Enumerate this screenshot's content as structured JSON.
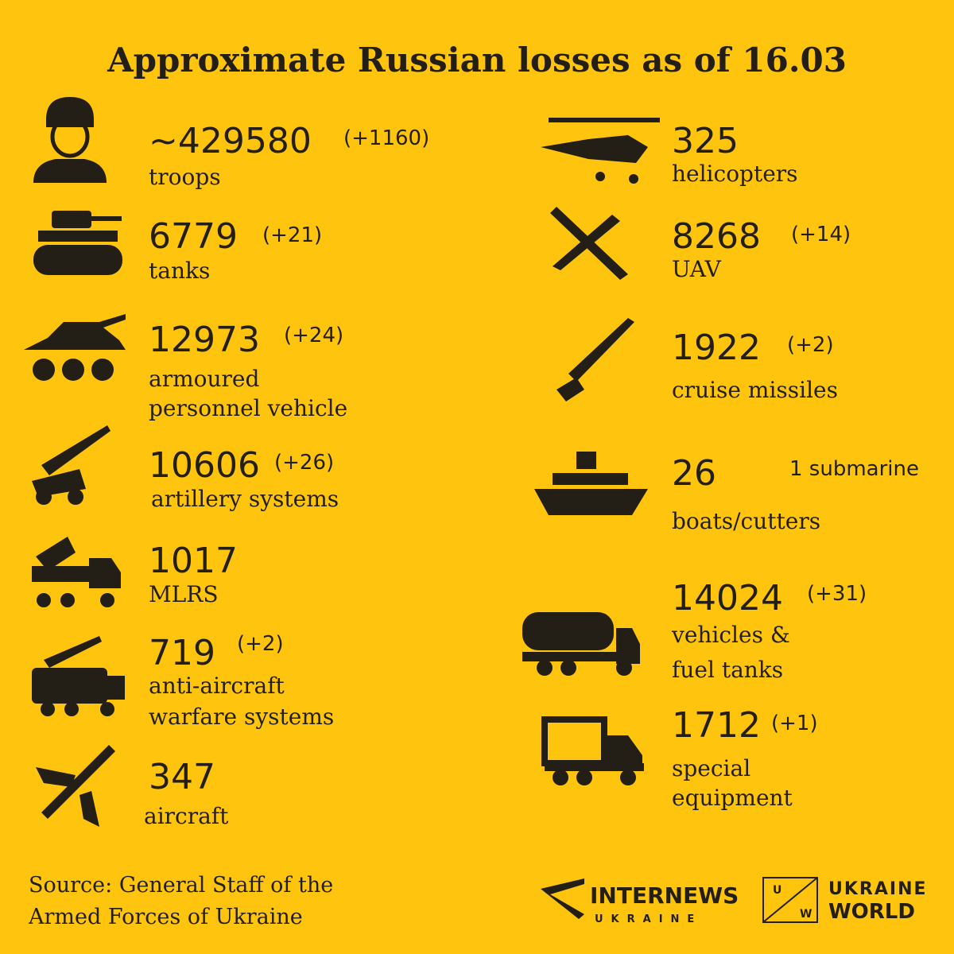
{
  "title": "Approximate Russian losses as of 16.03",
  "items": [
    {
      "value": "~429580",
      "delta": "(+1160)",
      "label": [
        "troops"
      ]
    },
    {
      "value": "6779",
      "delta": "(+21)",
      "label": [
        "tanks"
      ]
    },
    {
      "value": "12973",
      "delta": "(+24)",
      "label": [
        "armoured",
        "personnel vehicle"
      ]
    },
    {
      "value": "10606",
      "delta": "(+26)",
      "label": [
        "artillery systems"
      ]
    },
    {
      "value": "1017",
      "label": [
        "MLRS"
      ]
    },
    {
      "value": "719",
      "delta": "(+2)",
      "label": [
        "anti-aircraft",
        "warfare systems"
      ]
    },
    {
      "value": "347",
      "label": [
        "aircraft"
      ]
    },
    {
      "value": "325",
      "label": [
        "helicopters"
      ]
    },
    {
      "value": "8268",
      "delta": "(+14)",
      "label": [
        "UAV"
      ]
    },
    {
      "value": "1922",
      "delta": "(+2)",
      "label": [
        "cruise missiles"
      ]
    },
    {
      "value": "26",
      "delta": "1 submarine",
      "label": [
        "boats/cutters"
      ]
    },
    {
      "value": "14024",
      "delta": "(+31)",
      "label": [
        "vehicles &",
        "fuel tanks"
      ]
    },
    {
      "value": "1712",
      "delta": "(+1)",
      "label": [
        "special",
        "equipment"
      ]
    }
  ],
  "source": [
    "Source: General Staff of the",
    "Armed Forces of Ukraine"
  ],
  "logos": {
    "internews": [
      "INTERNEWS",
      "UKRAINE"
    ],
    "uw_mark": [
      "U",
      "W"
    ],
    "ukraine_world": [
      "UKRAINE",
      "WORLD"
    ]
  }
}
